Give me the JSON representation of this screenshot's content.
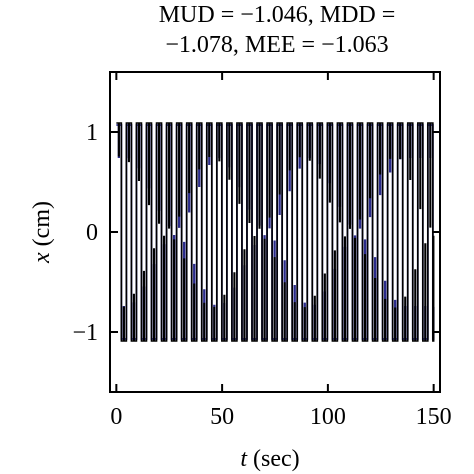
{
  "chart_data": {
    "type": "line",
    "title_lines": [
      "MUD = −1.046, MDD =",
      "−1.078, MEE = −1.063"
    ],
    "xlabel_italic": "t",
    "xlabel_rest": " (sec)",
    "ylabel_italic": "x",
    "ylabel_rest": " (cm)",
    "xlim": [
      -3,
      153
    ],
    "ylim": [
      -1.6,
      1.6
    ],
    "x_ticks": [
      0,
      50,
      100,
      150
    ],
    "y_ticks": [
      -1,
      0,
      1
    ],
    "x_tick_labels": [
      "0",
      "50",
      "100",
      "150"
    ],
    "y_tick_labels": [
      "−1",
      "0",
      "1"
    ],
    "grid": false,
    "legend": "none",
    "series": [
      {
        "color": "#2a2a8a",
        "signal": {
          "amplitude": 1.07,
          "period_sec": 4.75,
          "duration_sec": 150,
          "envelope_peaks_sec": [
            5,
            48,
            92,
            136
          ],
          "envelope_troughs_sec": [
            28,
            71,
            114
          ],
          "envelope_min_amplitude": 0.05
        }
      },
      {
        "color": "#000000",
        "signal": {
          "amplitude": 1.09,
          "period_sec": 4.75,
          "duration_sec": 150,
          "envelope_peaks_sec": [
            2,
            45,
            88,
            132
          ],
          "envelope_troughs_sec": [
            24,
            67,
            110,
            150
          ],
          "envelope_min_amplitude": 0.05
        }
      }
    ]
  }
}
